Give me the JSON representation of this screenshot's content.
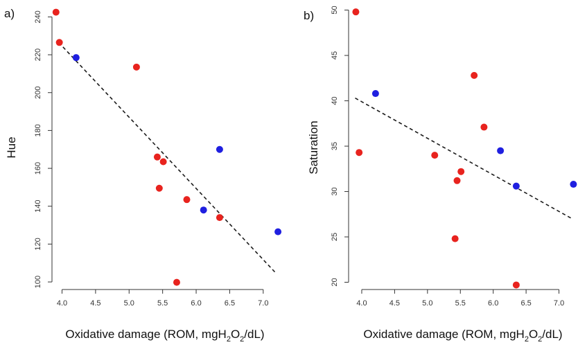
{
  "chart_data": [
    {
      "type": "scatter",
      "panel_label": "a)",
      "ylabel": "Hue",
      "xlabel_parts": [
        "Oxidative damage (ROM, mgH",
        "2",
        "O",
        "2",
        "/dL)"
      ],
      "xlim": [
        3.85,
        7.25
      ],
      "ylim": [
        96,
        246
      ],
      "xticks": [
        4.0,
        4.5,
        5.0,
        5.5,
        6.0,
        6.5,
        7.0
      ],
      "xtick_labels": [
        "4.0",
        "4.5",
        "5.0",
        "5.5",
        "6.0",
        "6.5",
        "7.0"
      ],
      "yticks": [
        100,
        120,
        140,
        160,
        180,
        200,
        220,
        240
      ],
      "ytick_labels": [
        "100",
        "120",
        "140",
        "160",
        "180",
        "200",
        "220",
        "240"
      ],
      "grid": false,
      "series": [
        {
          "color": "#e8231e",
          "points": [
            {
              "x": 3.91,
              "y": 242.5
            },
            {
              "x": 3.96,
              "y": 226.5
            },
            {
              "x": 5.11,
              "y": 213.5
            },
            {
              "x": 5.42,
              "y": 166
            },
            {
              "x": 5.51,
              "y": 163.5
            },
            {
              "x": 5.45,
              "y": 149.5
            },
            {
              "x": 5.86,
              "y": 143.5
            },
            {
              "x": 6.35,
              "y": 134
            },
            {
              "x": 5.71,
              "y": 99.8
            }
          ]
        },
        {
          "color": "#1f1fe0",
          "points": [
            {
              "x": 4.21,
              "y": 218.5
            },
            {
              "x": 6.35,
              "y": 170
            },
            {
              "x": 6.11,
              "y": 138
            },
            {
              "x": 7.22,
              "y": 126.5
            }
          ]
        }
      ],
      "trend_line": {
        "x": [
          3.95,
          7.18
        ],
        "y": [
          226.5,
          105
        ]
      }
    },
    {
      "type": "scatter",
      "panel_label": "b)",
      "ylabel": "Saturation",
      "xlabel_parts": [
        "Oxidative damage (ROM, mgH",
        "2",
        "O",
        "2",
        "/dL)"
      ],
      "xlim": [
        3.8,
        7.3
      ],
      "ylim": [
        19.2,
        50.5
      ],
      "xticks": [
        4.0,
        4.5,
        5.0,
        5.5,
        6.0,
        6.5,
        7.0
      ],
      "xtick_labels": [
        "4.0",
        "4.5",
        "5.0",
        "5.5",
        "6.0",
        "6.5",
        "7.0"
      ],
      "yticks": [
        20,
        25,
        30,
        35,
        40,
        45,
        50
      ],
      "ytick_labels": [
        "20",
        "25",
        "30",
        "35",
        "40",
        "45",
        "50"
      ],
      "grid": false,
      "series": [
        {
          "color": "#e8231e",
          "points": [
            {
              "x": 3.91,
              "y": 49.8
            },
            {
              "x": 3.96,
              "y": 34.3
            },
            {
              "x": 5.11,
              "y": 34
            },
            {
              "x": 5.51,
              "y": 32.2
            },
            {
              "x": 5.45,
              "y": 31.2
            },
            {
              "x": 5.42,
              "y": 24.8
            },
            {
              "x": 5.71,
              "y": 42.8
            },
            {
              "x": 5.86,
              "y": 37.1
            },
            {
              "x": 6.35,
              "y": 19.7
            }
          ]
        },
        {
          "color": "#1f1fe0",
          "points": [
            {
              "x": 4.21,
              "y": 40.8
            },
            {
              "x": 6.11,
              "y": 34.5
            },
            {
              "x": 6.35,
              "y": 30.6
            },
            {
              "x": 7.22,
              "y": 30.8
            }
          ]
        }
      ],
      "trend_line": {
        "x": [
          3.9,
          7.2
        ],
        "y": [
          40.3,
          27
        ]
      }
    }
  ]
}
